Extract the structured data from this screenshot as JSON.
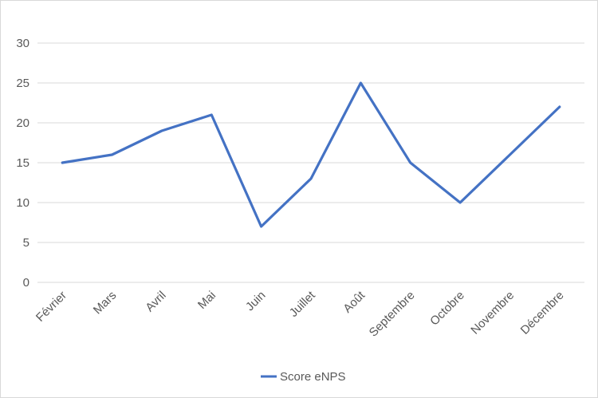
{
  "chart_data": {
    "type": "line",
    "categories": [
      "Février",
      "Mars",
      "Avril",
      "Mai",
      "Juin",
      "Juillet",
      "Août",
      "Septembre",
      "Octobre",
      "Novembre",
      "Décembre"
    ],
    "series": [
      {
        "name": "Score eNPS",
        "values": [
          15,
          16,
          19,
          21,
          7,
          13,
          25,
          15,
          10,
          16,
          22
        ],
        "color": "#4472C4"
      }
    ],
    "yticks": [
      0,
      5,
      10,
      15,
      20,
      25,
      30
    ],
    "ylim": [
      0,
      30
    ],
    "grid": true,
    "legend_position": "bottom",
    "gridline_color": "#d9d9d9",
    "text_color": "#595959"
  }
}
